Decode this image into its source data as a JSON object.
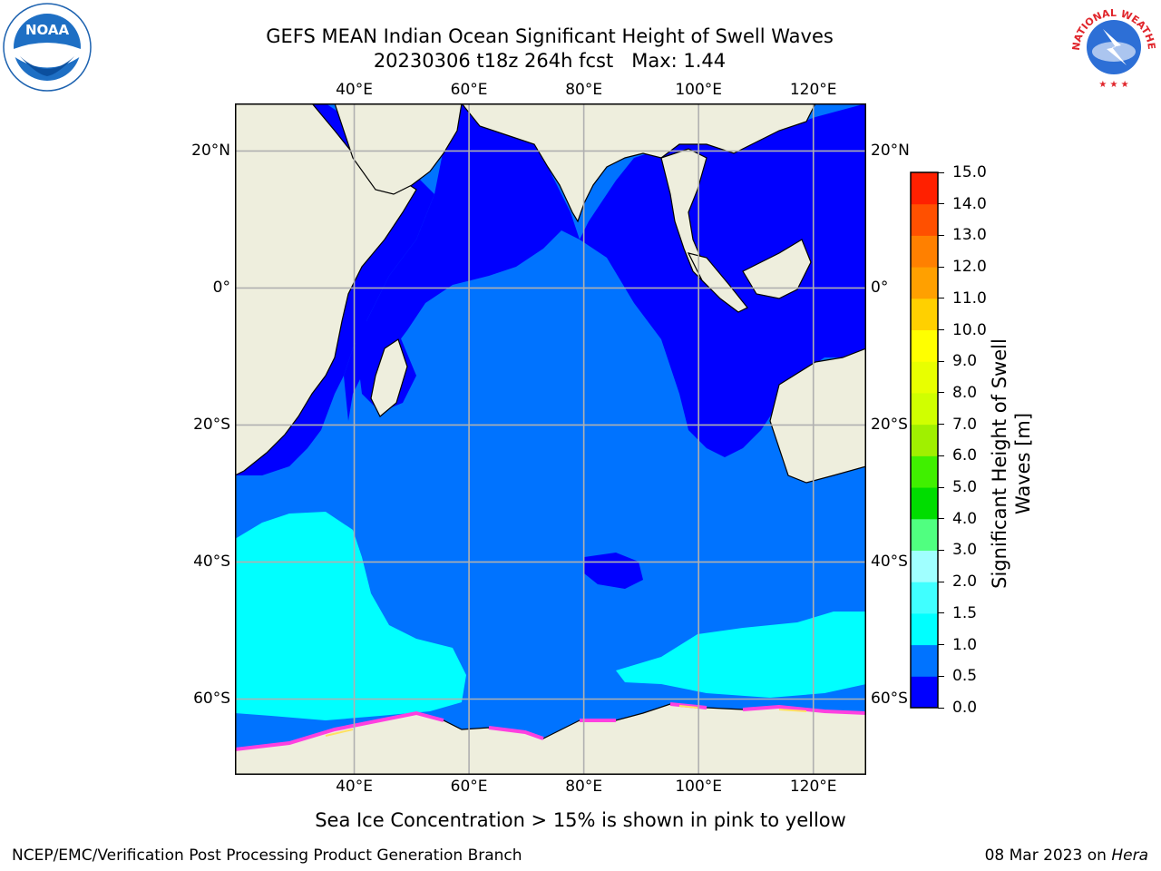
{
  "title": {
    "line1": "GEFS MEAN Indian Ocean Significant Height of Swell Waves",
    "line2": "20230306 t18z 264h fcst   Max: 1.44"
  },
  "map": {
    "lon_labels": [
      "40°E",
      "60°E",
      "80°E",
      "100°E",
      "120°E"
    ],
    "lon_values": [
      40,
      60,
      80,
      100,
      120
    ],
    "lat_labels": [
      "20°N",
      "0°",
      "20°S",
      "40°S",
      "60°S"
    ],
    "lat_values": [
      20,
      0,
      -20,
      -40,
      -60
    ],
    "extent": {
      "lon_min": 20,
      "lon_max": 130,
      "lat_min": -70,
      "lat_max": 28
    },
    "colors": {
      "land": "#eeeedd",
      "grid": "#b0b0b0",
      "coast": "#000000"
    }
  },
  "colorbar": {
    "title_line1": "Significant Height of Swell",
    "title_line2": "Waves [m]",
    "ticks": [
      "0.0",
      "0.5",
      "1.0",
      "1.5",
      "2.0",
      "3.0",
      "4.0",
      "5.0",
      "6.0",
      "7.0",
      "8.0",
      "9.0",
      "10.0",
      "11.0",
      "12.0",
      "13.0",
      "14.0",
      "15.0"
    ],
    "colors": [
      "#0000ff",
      "#0073ff",
      "#00ffff",
      "#40ffff",
      "#a0ffff",
      "#50ff80",
      "#00dd00",
      "#40f000",
      "#a0f000",
      "#d0ff00",
      "#e8ff00",
      "#ffff00",
      "#ffd000",
      "#ffa000",
      "#ff8000",
      "#ff5000",
      "#ff2000"
    ]
  },
  "caption": "Sea Ice Concentration > 15% is shown in pink to yellow",
  "footer": {
    "left": "NCEP/EMC/Verification Post Processing Product Generation Branch",
    "right_date": "08 Mar 2023 on",
    "right_host": "Hera"
  },
  "logos": {
    "left": "noara-logo",
    "right": "nws-logo",
    "right_text": "NATIONAL WEATHER SERVICE"
  }
}
